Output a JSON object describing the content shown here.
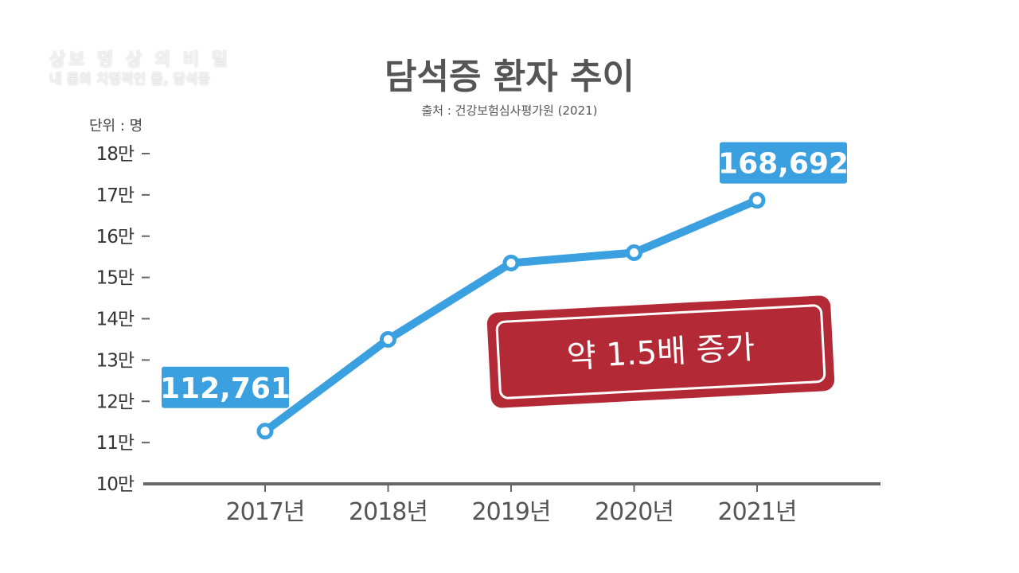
{
  "watermark": {
    "line1": "상보 명 상 의 비 밀",
    "line2": "내 몸의 치명적인 돌, 담석증"
  },
  "header": {
    "title": "담석증 환자 추이",
    "source": "출처 : 건강보험심사평가원 (2021)",
    "unit": "단위 : 명"
  },
  "stamp": {
    "text": "약 1.5배 증가",
    "color": "#b32a36"
  },
  "colors": {
    "line": "#3aa0e0",
    "axis": "#666666",
    "callout": "#3aa0e0"
  },
  "chart_data": {
    "type": "line",
    "title": "담석증 환자 추이",
    "categories": [
      "2017년",
      "2018년",
      "2019년",
      "2020년",
      "2021년"
    ],
    "values": [
      112761,
      135000,
      153500,
      156000,
      168692
    ],
    "ylim": [
      100000,
      180000
    ],
    "yticks": [
      100000,
      110000,
      120000,
      130000,
      140000,
      150000,
      160000,
      170000,
      180000
    ],
    "ytick_labels": [
      "10만",
      "11만",
      "12만",
      "13만",
      "14만",
      "15만",
      "16만",
      "17만",
      "18만"
    ],
    "data_labels": [
      {
        "index": 0,
        "text": "112,761"
      },
      {
        "index": 4,
        "text": "168,692"
      }
    ],
    "grid": false,
    "legend": "none"
  }
}
